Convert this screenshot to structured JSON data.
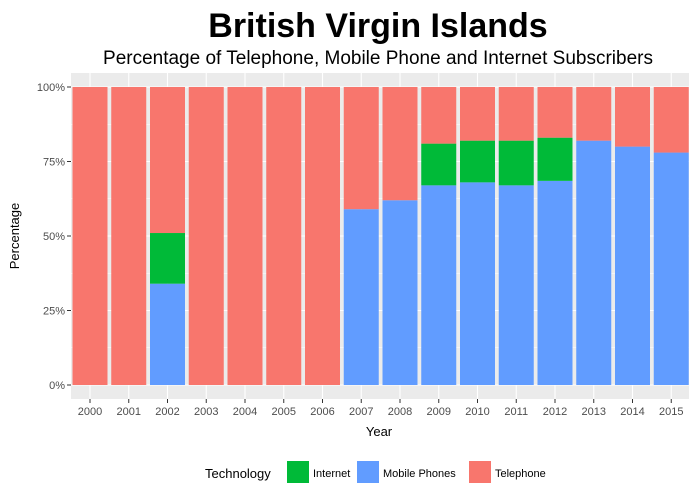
{
  "chart_data": {
    "type": "bar",
    "stacked": true,
    "title": "British Virgin Islands",
    "subtitle": "Percentage of Telephone, Mobile Phone and Internet Subscribers",
    "xlabel": "Year",
    "ylabel": "Percentage",
    "ylim": [
      0,
      1
    ],
    "y_ticks": [
      "0%",
      "25%",
      "50%",
      "75%",
      "100%"
    ],
    "y_tick_values": [
      0,
      0.25,
      0.5,
      0.75,
      1.0
    ],
    "grid": true,
    "legend": {
      "position": "bottom",
      "title": "Technology"
    },
    "categories": [
      "2000",
      "2001",
      "2002",
      "2003",
      "2004",
      "2005",
      "2006",
      "2007",
      "2008",
      "2009",
      "2010",
      "2011",
      "2012",
      "2013",
      "2014",
      "2015"
    ],
    "series": [
      {
        "name": "Mobile Phones",
        "color": "#619CFF",
        "values": [
          0,
          0,
          0.34,
          0,
          0,
          0,
          0,
          0.59,
          0.62,
          0.67,
          0.68,
          0.67,
          0.685,
          0.82,
          0.8,
          0.78
        ]
      },
      {
        "name": "Internet",
        "color": "#00BA38",
        "values": [
          0,
          0,
          0.17,
          0,
          0,
          0,
          0,
          0,
          0,
          0.14,
          0.14,
          0.15,
          0.145,
          0,
          0,
          0
        ]
      },
      {
        "name": "Telephone",
        "color": "#F8766D",
        "values": [
          1.0,
          1.0,
          0.49,
          1.0,
          1.0,
          1.0,
          1.0,
          0.41,
          0.38,
          0.19,
          0.18,
          0.18,
          0.17,
          0.18,
          0.2,
          0.22
        ]
      }
    ],
    "legend_order": [
      "Internet",
      "Mobile Phones",
      "Telephone"
    ]
  },
  "colors": {
    "panel_bg": "#EBEBEB",
    "grid": "#FFFFFF",
    "tick_text": "#4D4D4D"
  }
}
